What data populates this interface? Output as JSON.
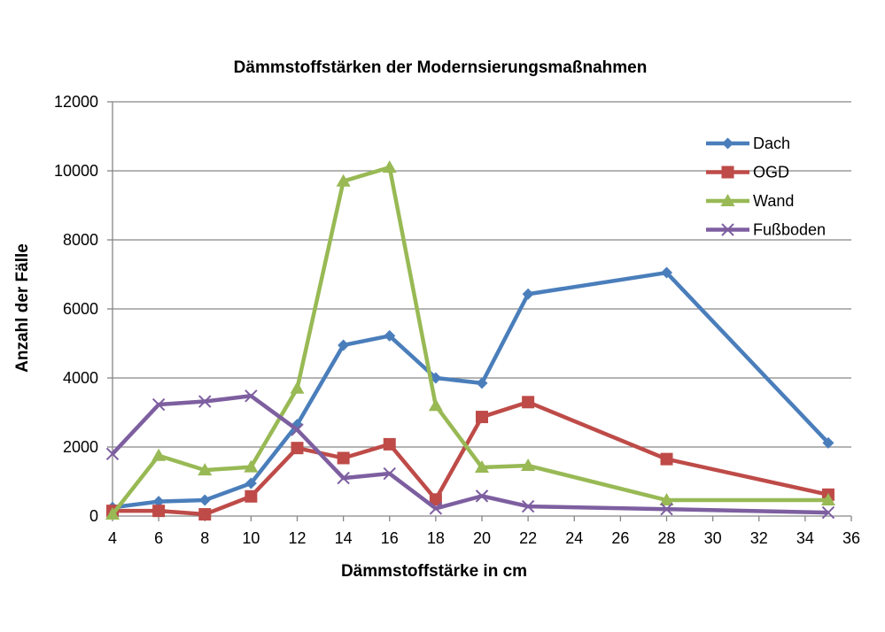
{
  "chart_data": {
    "type": "line",
    "title": "Dämmstoffstärken  der Modernsierungsmaßnahmen",
    "xlabel": "Dämmstoffstärke  in cm",
    "ylabel": "Anzahl der Fälle",
    "xlim": [
      4,
      36
    ],
    "ylim": [
      0,
      12000
    ],
    "x_ticks": [
      "4",
      "6",
      "8",
      "10",
      "12",
      "14",
      "16",
      "18",
      "20",
      "22",
      "24",
      "26",
      "28",
      "30",
      "32",
      "34",
      "36"
    ],
    "y_ticks": [
      "0",
      "2000",
      "4000",
      "6000",
      "8000",
      "10000",
      "12000"
    ],
    "grid": "horizontal",
    "legend_position": "top-right",
    "x": [
      4,
      6,
      8,
      10,
      12,
      14,
      16,
      18,
      20,
      22,
      28,
      35
    ],
    "series": [
      {
        "name": "Dach",
        "color": "#4a7ebb",
        "marker": "diamond",
        "values": [
          250,
          420,
          460,
          950,
          2650,
          4950,
          5220,
          4000,
          3850,
          6430,
          7050,
          2120
        ]
      },
      {
        "name": "OGD",
        "color": "#be4b48",
        "marker": "square",
        "values": [
          150,
          150,
          50,
          570,
          1970,
          1680,
          2080,
          480,
          2870,
          3300,
          1650,
          620
        ]
      },
      {
        "name": "Wand",
        "color": "#98b954",
        "marker": "triangle",
        "values": [
          50,
          1750,
          1330,
          1420,
          3700,
          9700,
          10100,
          3200,
          1410,
          1460,
          460,
          460
        ]
      },
      {
        "name": "Fußboden",
        "color": "#7d5fa0",
        "marker": "x",
        "values": [
          1800,
          3230,
          3320,
          3480,
          2500,
          1100,
          1230,
          220,
          580,
          280,
          200,
          100
        ]
      }
    ]
  }
}
